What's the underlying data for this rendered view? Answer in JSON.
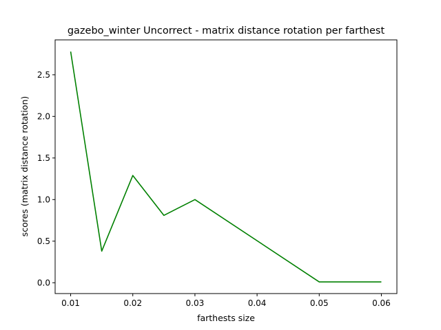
{
  "chart_data": {
    "type": "line",
    "title": "gazebo_winter Uncorrect - matrix distance rotation per farthest",
    "xlabel": "farthests size",
    "ylabel": "scores (matrix distance rotation)",
    "xlim": [
      0.0075,
      0.0625
    ],
    "ylim": [
      -0.13,
      2.92
    ],
    "x_ticks": [
      {
        "value": 0.01,
        "label": "0.01"
      },
      {
        "value": 0.02,
        "label": "0.02"
      },
      {
        "value": 0.03,
        "label": "0.03"
      },
      {
        "value": 0.04,
        "label": "0.04"
      },
      {
        "value": 0.05,
        "label": "0.05"
      },
      {
        "value": 0.06,
        "label": "0.06"
      }
    ],
    "y_ticks": [
      {
        "value": 0.0,
        "label": "0.0"
      },
      {
        "value": 0.5,
        "label": "0.5"
      },
      {
        "value": 1.0,
        "label": "1.0"
      },
      {
        "value": 1.5,
        "label": "1.5"
      },
      {
        "value": 2.0,
        "label": "2.0"
      },
      {
        "value": 2.5,
        "label": "2.5"
      }
    ],
    "grid": false,
    "series": [
      {
        "color": "#008000",
        "x": [
          0.01,
          0.015,
          0.02,
          0.025,
          0.03,
          0.05,
          0.06
        ],
        "y": [
          2.78,
          0.38,
          1.29,
          0.81,
          1.0,
          0.01,
          0.01
        ]
      }
    ]
  }
}
